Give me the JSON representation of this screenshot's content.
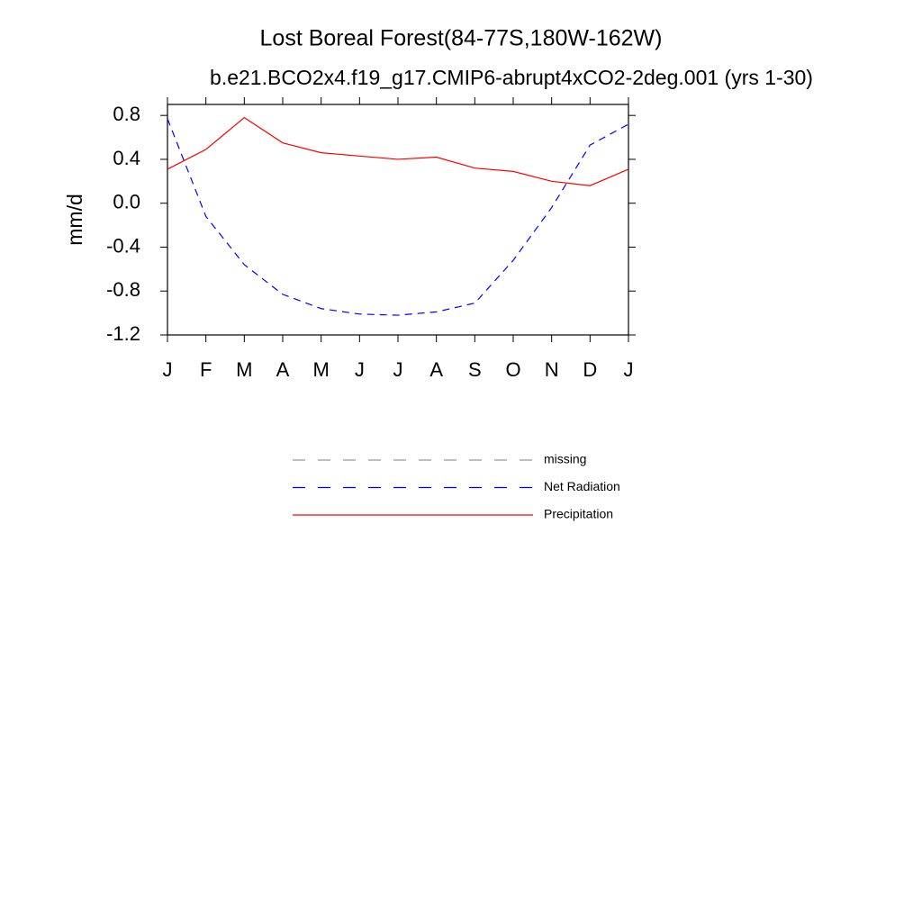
{
  "chart_data": {
    "type": "line",
    "title": "Lost Boreal Forest(84-77S,180W-162W)",
    "subtitle": "b.e21.BCO2x4.f19_g17.CMIP6-abrupt4xCO2-2deg.001 (yrs 1-30)",
    "y_label": "mm/d",
    "categories": [
      "J",
      "F",
      "M",
      "A",
      "M",
      "J",
      "J",
      "A",
      "S",
      "O",
      "N",
      "D",
      "J"
    ],
    "ylim": [
      -1.2,
      0.9
    ],
    "yticks": [
      0.8,
      0.4,
      {
        "value": 0,
        "label": "0.0"
      },
      -0.4,
      -0.8,
      -1.2
    ],
    "series": [
      {
        "name": "missing",
        "color": "#999999",
        "dashed": true,
        "values": [
          null,
          null,
          null,
          null,
          null,
          null,
          null,
          null,
          null,
          null,
          null,
          null,
          null
        ]
      },
      {
        "name": "Net Radiation",
        "color": "#0000ff",
        "dashed": true,
        "values": [
          0.77,
          -0.12,
          -0.56,
          -0.83,
          -0.96,
          -1.01,
          -1.02,
          -0.99,
          -0.91,
          -0.52,
          -0.04,
          0.53,
          0.72
        ]
      },
      {
        "name": "Precipitation",
        "color": "#ff0000",
        "dashed": false,
        "values": [
          0.31,
          0.49,
          0.78,
          0.55,
          0.46,
          0.43,
          0.4,
          0.42,
          0.32,
          0.29,
          0.2,
          0.16,
          0.31
        ]
      }
    ]
  }
}
